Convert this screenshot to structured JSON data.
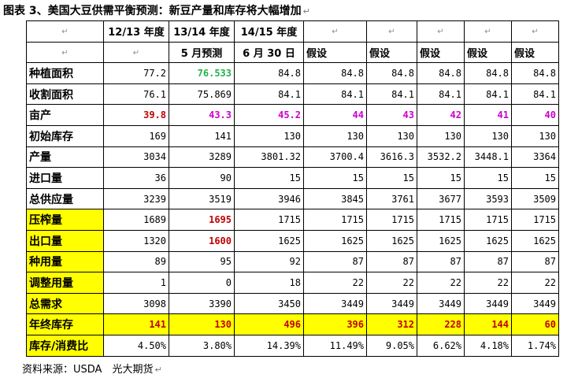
{
  "title": "图表 3、美国大豆供需平衡预测：新豆产量和库存将大幅增加",
  "mark": "↵",
  "header_row1": [
    "",
    "12/13 年度",
    "13/14 年度",
    "14/15 年度",
    "",
    "",
    "",
    "",
    ""
  ],
  "header_row2": [
    "",
    "",
    "5 月预测",
    "6 月 30 日",
    "假设",
    "假设",
    "假设",
    "假设",
    "假设"
  ],
  "rows": [
    {
      "label": "种植面积",
      "values": [
        "77.2",
        "76.533",
        "84.8",
        "84.8",
        "84.8",
        "84.8",
        "84.8",
        "84.8"
      ],
      "colors": [
        "",
        "green",
        "",
        "",
        "",
        "",
        "",
        ""
      ]
    },
    {
      "label": "收割面积",
      "values": [
        "76.1",
        "75.869",
        "84.1",
        "84.1",
        "84.1",
        "84.1",
        "84.1",
        "84.1"
      ],
      "colors": [
        "",
        "",
        "",
        "",
        "",
        "",
        "",
        ""
      ]
    },
    {
      "label": "亩产",
      "values": [
        "39.8",
        "43.3",
        "45.2",
        "44",
        "43",
        "42",
        "41",
        "40"
      ],
      "colors": [
        "red",
        "magenta",
        "magenta",
        "magenta",
        "magenta",
        "magenta",
        "magenta",
        "magenta"
      ]
    },
    {
      "label": "初始库存",
      "values": [
        "169",
        "141",
        "130",
        "130",
        "130",
        "130",
        "130",
        "130"
      ],
      "colors": [
        "",
        "",
        "",
        "",
        "",
        "",
        "",
        ""
      ]
    },
    {
      "label": "产量",
      "values": [
        "3034",
        "3289",
        "3801.32",
        "3700.4",
        "3616.3",
        "3532.2",
        "3448.1",
        "3364"
      ],
      "colors": [
        "",
        "",
        "",
        "",
        "",
        "",
        "",
        ""
      ]
    },
    {
      "label": "进口量",
      "values": [
        "36",
        "90",
        "15",
        "15",
        "15",
        "15",
        "15",
        "15"
      ],
      "colors": [
        "",
        "",
        "",
        "",
        "",
        "",
        "",
        ""
      ]
    },
    {
      "label": "总供应量",
      "values": [
        "3239",
        "3519",
        "3946",
        "3845",
        "3761",
        "3677",
        "3593",
        "3509"
      ],
      "colors": [
        "",
        "",
        "",
        "",
        "",
        "",
        "",
        ""
      ]
    },
    {
      "label": "压榨量",
      "values": [
        "1689",
        "1695",
        "1715",
        "1715",
        "1715",
        "1715",
        "1715",
        "1715"
      ],
      "colors": [
        "",
        "red",
        "",
        "",
        "",
        "",
        "",
        ""
      ],
      "highlight_label": true
    },
    {
      "label": "出口量",
      "values": [
        "1320",
        "1600",
        "1625",
        "1625",
        "1625",
        "1625",
        "1625",
        "1625"
      ],
      "colors": [
        "",
        "red",
        "",
        "",
        "",
        "",
        "",
        ""
      ],
      "highlight_label": true
    },
    {
      "label": "种用量",
      "values": [
        "89",
        "95",
        "92",
        "87",
        "87",
        "87",
        "87",
        "87"
      ],
      "colors": [
        "",
        "",
        "",
        "",
        "",
        "",
        "",
        ""
      ],
      "highlight_label": true
    },
    {
      "label": "调整用量",
      "values": [
        "1",
        "0",
        "18",
        "22",
        "22",
        "22",
        "22",
        "22"
      ],
      "colors": [
        "",
        "",
        "",
        "",
        "",
        "",
        "",
        ""
      ],
      "highlight_label": true
    },
    {
      "label": "总需求",
      "values": [
        "3098",
        "3390",
        "3450",
        "3449",
        "3449",
        "3449",
        "3449",
        "3449"
      ],
      "colors": [
        "",
        "",
        "",
        "",
        "",
        "",
        "",
        ""
      ],
      "highlight_label": true
    },
    {
      "label": "年终库存",
      "values": [
        "141",
        "130",
        "496",
        "396",
        "312",
        "228",
        "144",
        "60"
      ],
      "colors": [
        "red",
        "red",
        "red",
        "red",
        "red",
        "red",
        "red",
        "red"
      ],
      "highlight_row": true
    },
    {
      "label": "库存/消费比",
      "values": [
        "4.50%",
        "3.80%",
        "14.39%",
        "11.49%",
        "9.05%",
        "6.62%",
        "4.18%",
        "1.74%"
      ],
      "colors": [
        "",
        "",
        "",
        "",
        "",
        "",
        "",
        ""
      ],
      "highlight_label": true
    }
  ],
  "source": "资料来源：USDA　光大期货",
  "colors": {
    "highlight": "#ffff00",
    "red": "#c00000",
    "green": "#22b14c",
    "magenta": "#cc00cc"
  }
}
